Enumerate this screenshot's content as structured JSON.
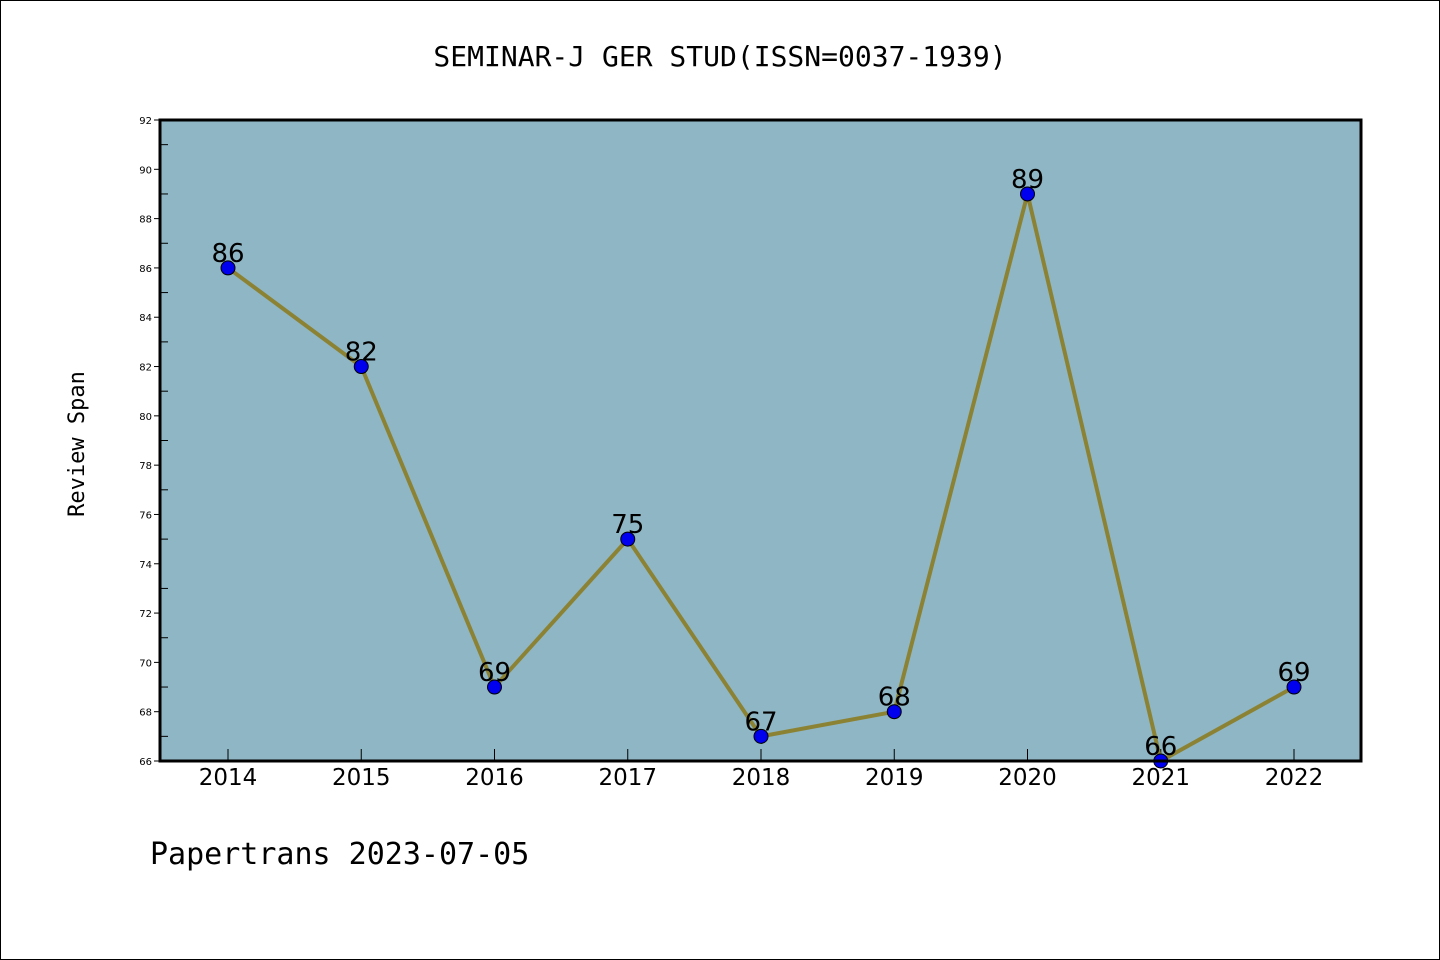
{
  "chart_data": {
    "type": "line",
    "title": "SEMINAR-J GER STUD(ISSN=0037-1939)",
    "xlabel": "",
    "ylabel": "Review Span",
    "categories": [
      "2014",
      "2015",
      "2016",
      "2017",
      "2018",
      "2019",
      "2020",
      "2021",
      "2022"
    ],
    "series": [
      {
        "values": [
          86,
          82,
          69,
          75,
          67,
          68,
          89,
          66,
          69
        ]
      }
    ],
    "ylim": [
      66,
      92
    ],
    "yticks": [
      66,
      68,
      70,
      72,
      74,
      76,
      78,
      80,
      82,
      84,
      86,
      88,
      90,
      92
    ],
    "grid": false,
    "data_labels": true,
    "colors": {
      "plot_background": "#8fb6c4",
      "line": "#8c8234",
      "marker": "#0000ee"
    }
  },
  "footer": {
    "text": "Papertrans 2023-07-05"
  }
}
